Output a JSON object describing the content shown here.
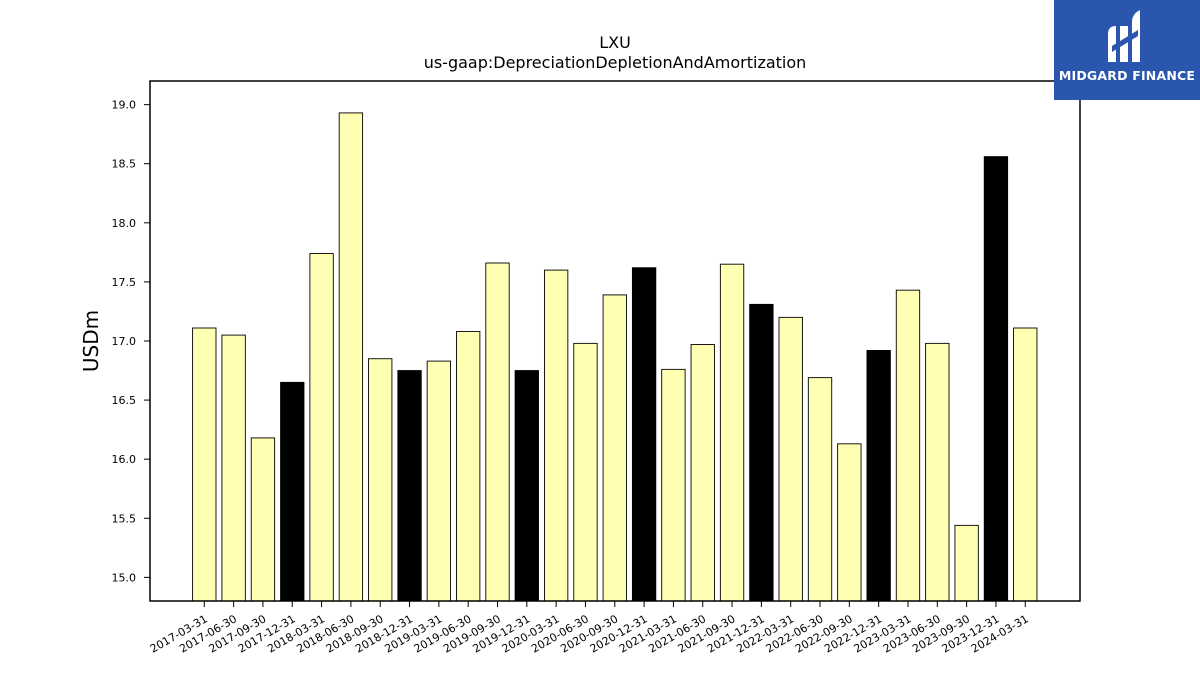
{
  "chart_data": {
    "type": "bar",
    "title": "LXU",
    "subtitle": "us-gaap:DepreciationDepletionAndAmortization",
    "xlabel": "",
    "ylabel": "USDm",
    "ylim": [
      14.8,
      19.2
    ],
    "yticks": [
      "15.0",
      "15.5",
      "16.0",
      "16.5",
      "17.0",
      "17.5",
      "18.0",
      "18.5",
      "19.0"
    ],
    "grid": false,
    "colors": {
      "normal": "#ffffb3",
      "q4": "#000000",
      "edge": "#000000"
    },
    "categories": [
      "2017-03-31",
      "2017-06-30",
      "2017-09-30",
      "2017-12-31",
      "2018-03-31",
      "2018-06-30",
      "2018-09-30",
      "2018-12-31",
      "2019-03-31",
      "2019-06-30",
      "2019-09-30",
      "2019-12-31",
      "2020-03-31",
      "2020-06-30",
      "2020-09-30",
      "2020-12-31",
      "2021-03-31",
      "2021-06-30",
      "2021-09-30",
      "2021-12-31",
      "2022-03-31",
      "2022-06-30",
      "2022-09-30",
      "2022-12-31",
      "2023-03-31",
      "2023-06-30",
      "2023-09-30",
      "2023-12-31",
      "2024-03-31"
    ],
    "values": [
      17.11,
      17.05,
      16.18,
      16.65,
      17.74,
      18.93,
      16.85,
      16.75,
      16.83,
      17.08,
      17.66,
      16.75,
      17.6,
      16.98,
      17.39,
      17.62,
      16.76,
      16.97,
      17.65,
      17.31,
      17.2,
      16.69,
      16.13,
      16.92,
      17.43,
      16.98,
      15.44,
      18.56,
      17.11
    ],
    "highlight": [
      false,
      false,
      false,
      true,
      false,
      false,
      false,
      true,
      false,
      false,
      false,
      true,
      false,
      false,
      false,
      true,
      false,
      false,
      false,
      true,
      false,
      false,
      false,
      true,
      false,
      false,
      false,
      true,
      false
    ]
  },
  "logo": {
    "text": "MIDGARD FINANCE",
    "icon": "midgard-logo-icon"
  }
}
